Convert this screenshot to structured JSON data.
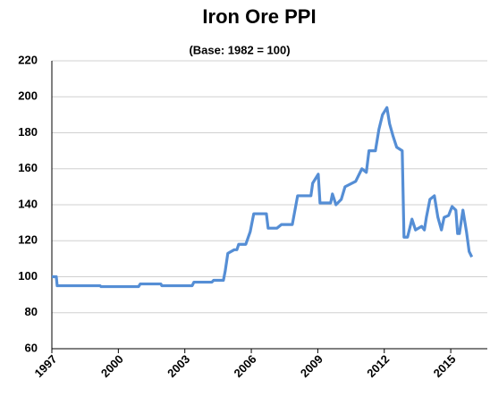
{
  "chart_data": {
    "type": "line",
    "title": "Iron Ore PPI",
    "subtitle": "(Base: 1982 = 100)",
    "x": [
      1997.0,
      1997.2,
      1997.24,
      1999.18,
      1999.22,
      2000.91,
      2000.99,
      2001.92,
      2001.96,
      2003.33,
      2003.41,
      2004.22,
      2004.3,
      2004.74,
      2004.82,
      2004.94,
      2005.23,
      2005.35,
      2005.43,
      2005.75,
      2005.95,
      2006.11,
      2006.68,
      2006.76,
      2007.16,
      2007.36,
      2007.85,
      2008.09,
      2008.69,
      2008.77,
      2009.02,
      2009.1,
      2009.58,
      2009.66,
      2009.82,
      2010.06,
      2010.23,
      2010.71,
      2010.99,
      2011.19,
      2011.31,
      2011.6,
      2011.76,
      2011.92,
      2012.12,
      2012.24,
      2012.4,
      2012.56,
      2012.81,
      2012.89,
      2013.05,
      2013.25,
      2013.41,
      2013.69,
      2013.81,
      2013.9,
      2014.06,
      2014.26,
      2014.42,
      2014.58,
      2014.7,
      2014.9,
      2015.06,
      2015.23,
      2015.31,
      2015.39,
      2015.55,
      2015.71,
      2015.83,
      2015.95
    ],
    "series": [
      {
        "name": "Iron Ore PPI",
        "color": "#558ed5",
        "values": [
          100,
          100,
          95,
          95,
          94.5,
          94.5,
          96,
          96,
          95,
          95,
          97,
          97,
          98,
          98,
          103,
          113,
          115,
          115,
          118,
          118,
          125,
          135,
          135,
          127,
          127,
          129,
          129,
          145,
          145,
          152,
          157,
          141,
          141,
          146,
          140,
          143,
          150,
          153,
          160,
          158,
          170,
          170,
          182,
          190,
          194,
          185,
          178,
          172,
          170,
          122,
          122,
          132,
          126,
          128,
          126,
          133,
          143,
          145,
          133,
          126,
          133,
          134,
          139,
          137,
          124,
          124,
          137,
          125,
          114,
          111
        ]
      }
    ],
    "xlim": [
      1997,
      2016.65
    ],
    "xticks": [
      1997,
      2000,
      2003,
      2006,
      2009,
      2012,
      2015
    ],
    "ylim": [
      60,
      220
    ],
    "yticks": [
      60,
      80,
      100,
      120,
      140,
      160,
      180,
      200,
      220
    ],
    "grid": true
  }
}
